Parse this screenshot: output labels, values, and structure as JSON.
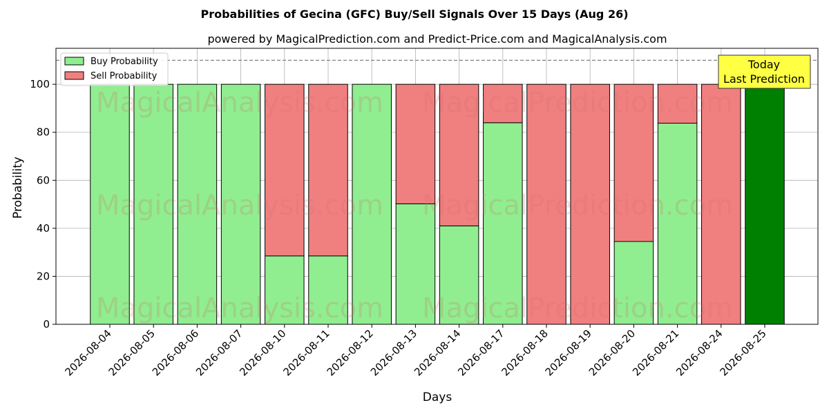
{
  "chart_data": {
    "type": "bar",
    "stacked": true,
    "title": "Probabilities of Gecina (GFC) Buy/Sell Signals Over 15 Days (Aug 26)",
    "subtitle": "powered by MagicalPrediction.com and Predict-Price.com and MagicalAnalysis.com",
    "xlabel": "Days",
    "ylabel": "Probability",
    "ylim": [
      0,
      115
    ],
    "yticks": [
      0,
      20,
      40,
      60,
      80,
      100
    ],
    "reference_line": 110,
    "grid": true,
    "legend_position": "top-left",
    "categories": [
      "2026-08-04",
      "2026-08-05",
      "2026-08-06",
      "2026-08-07",
      "2026-08-10",
      "2026-08-11",
      "2026-08-12",
      "2026-08-13",
      "2026-08-14",
      "2026-08-17",
      "2026-08-18",
      "2026-08-19",
      "2026-08-20",
      "2026-08-21",
      "2026-08-24",
      "2026-08-25"
    ],
    "series": [
      {
        "name": "Buy Probability",
        "color": "#90ee90",
        "values": [
          100,
          100,
          100,
          100,
          28.5,
          28.5,
          100,
          50.2,
          41,
          84,
          0,
          0,
          34.5,
          83.8,
          0,
          100
        ]
      },
      {
        "name": "Sell Probability",
        "color": "#f08080",
        "values": [
          0,
          0,
          0,
          0,
          71.5,
          71.5,
          0,
          49.8,
          59,
          16,
          100,
          100,
          65.5,
          16.2,
          100,
          0
        ]
      }
    ],
    "highlight": {
      "category": "2026-08-25",
      "color": "#008000"
    },
    "annotation": {
      "lines": [
        "Today",
        "Last Prediction"
      ],
      "color": "#ffff44"
    },
    "watermarks": [
      "MagicalAnalysis.com",
      "MagicalPrediction.com"
    ]
  }
}
